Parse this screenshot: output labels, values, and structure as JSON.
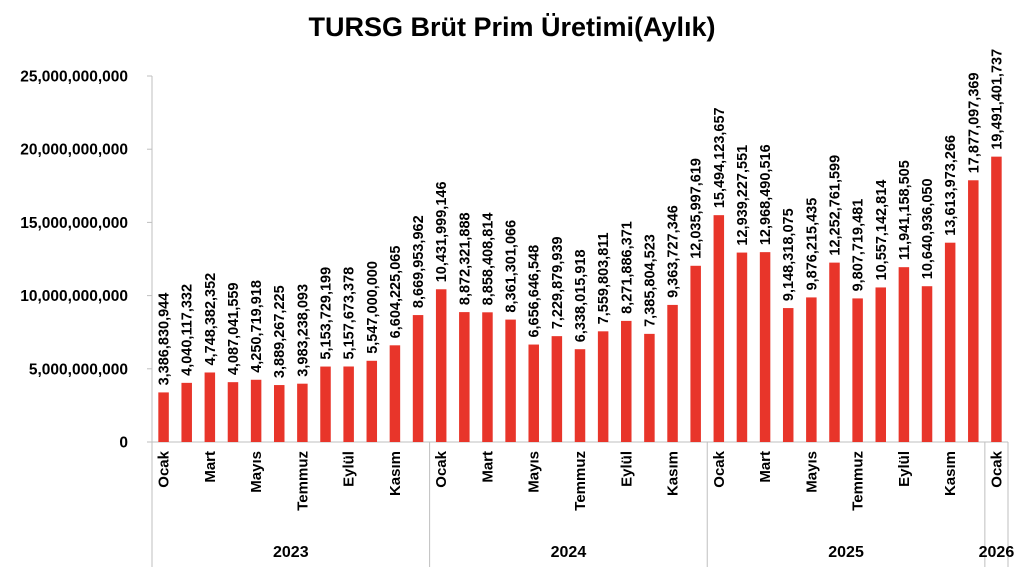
{
  "chart_data": {
    "type": "bar",
    "title": "TURSG Brüt Prim Üretimi(Aylık)",
    "ylim": [
      0,
      25000000000
    ],
    "yticks": [
      0,
      5000000000,
      10000000000,
      15000000000,
      20000000000,
      25000000000
    ],
    "ytick_labels": [
      "0",
      "5,000,000,000",
      "10,000,000,000",
      "15,000,000,000",
      "20,000,000,000",
      "25,000,000,000"
    ],
    "grid": false,
    "legend": "none",
    "bar_color": "#e8352a",
    "years": [
      {
        "label": "2023",
        "count": 12
      },
      {
        "label": "2024",
        "count": 12
      },
      {
        "label": "2025",
        "count": 12
      },
      {
        "label": "2026",
        "count": 1
      }
    ],
    "month_labels": [
      "Ocak",
      "",
      "Mart",
      "",
      "Mayıs",
      "",
      "Temmuz",
      "",
      "Eylül",
      "",
      "Kasım",
      "",
      "Ocak",
      "",
      "Mart",
      "",
      "Mayıs",
      "",
      "Temmuz",
      "",
      "Eylül",
      "",
      "Kasım",
      "",
      "Ocak",
      "",
      "Mart",
      "",
      "Mayıs",
      "",
      "Temmuz",
      "",
      "Eylül",
      "",
      "Kasım",
      "",
      "Ocak"
    ],
    "values": [
      3386830944,
      4040117332,
      4748382352,
      4087041559,
      4250719918,
      3889267225,
      3983238093,
      5153729199,
      5157673378,
      5547000000,
      6604225065,
      8669953962,
      10431999146,
      8872321888,
      8858408814,
      8361301066,
      6656646548,
      7229879939,
      6338015918,
      7559803811,
      8271886371,
      7385804523,
      9363727346,
      12035997619,
      15494123657,
      12939227551,
      12968490516,
      9148318075,
      9876215435,
      12252761599,
      9807719481,
      10557142814,
      11941158505,
      10640936050,
      13613973266,
      17877097369,
      19491401737
    ],
    "value_labels": [
      "3,386,830,944",
      "4,040,117,332",
      "4,748,382,352",
      "4,087,041,559",
      "4,250,719,918",
      "3,889,267,225",
      "3,983,238,093",
      "5,153,729,199",
      "5,157,673,378",
      "5,547,000,000",
      "6,604,225,065",
      "8,669,953,962",
      "10,431,999,146",
      "8,872,321,888",
      "8,858,408,814",
      "8,361,301,066",
      "6,656,646,548",
      "7,229,879,939",
      "6,338,015,918",
      "7,559,803,811",
      "8,271,886,371",
      "7,385,804,523",
      "9,363,727,346",
      "12,035,997,619",
      "15,494,123,657",
      "12,939,227,551",
      "12,968,490,516",
      "9,148,318,075",
      "9,876,215,435",
      "12,252,761,599",
      "9,807,719,481",
      "10,557,142,814",
      "11,941,158,505",
      "10,640,936,050",
      "13,613,973,266",
      "17,877,097,369",
      "19,491,401,737"
    ]
  }
}
